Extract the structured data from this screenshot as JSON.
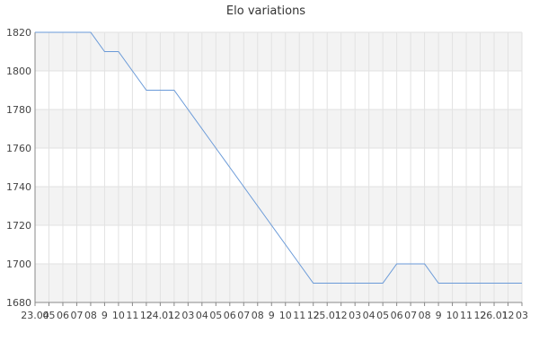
{
  "chart_data": {
    "type": "line",
    "title": "Elo variations",
    "xlabel": "",
    "ylabel": "",
    "ylim": [
      1680,
      1820
    ],
    "yticks": [
      1680,
      1700,
      1720,
      1740,
      1760,
      1780,
      1800,
      1820
    ],
    "grid": true,
    "x_tick_labels": [
      "23.04",
      "05",
      "06",
      "07",
      "08",
      "9",
      "10",
      "11",
      "12",
      "24.01",
      "12",
      "03",
      "04",
      "05",
      "06",
      "07",
      "08",
      "9",
      "10",
      "11",
      "12",
      "25.01",
      "12",
      "03",
      "04",
      "05",
      "06",
      "07",
      "08",
      "9",
      "10",
      "11",
      "12",
      "26.01",
      "12",
      "03"
    ],
    "series": [
      {
        "color": "#6a9ad8",
        "values": [
          1820,
          1820,
          1820,
          1820,
          1820,
          1810,
          1810,
          1800,
          1790,
          1790,
          1790,
          1780,
          1770,
          1760,
          1750,
          1740,
          1730,
          1720,
          1710,
          1700,
          1690,
          1690,
          1690,
          1690,
          1690,
          1690,
          1700,
          1700,
          1700,
          1690,
          1690,
          1690,
          1690,
          1690,
          1690,
          1690
        ]
      }
    ]
  }
}
